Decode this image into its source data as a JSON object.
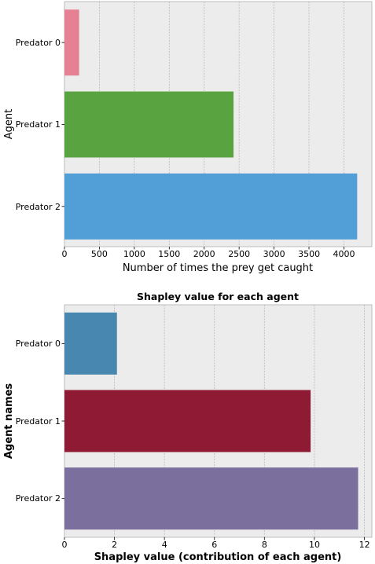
{
  "chart_data": [
    {
      "type": "bar",
      "orientation": "horizontal",
      "title": "",
      "xlabel": "Number of times the prey get caught",
      "ylabel": "Agent",
      "categories": [
        "Predator 0",
        "Predator 1",
        "Predator 2"
      ],
      "values": [
        210,
        2420,
        4190
      ],
      "colors": [
        "#e68093",
        "#59a440",
        "#529fd8"
      ],
      "xlim": [
        0,
        4400
      ],
      "xticks": [
        "0",
        "500",
        "1000",
        "1500",
        "2000",
        "2500",
        "3000",
        "3500",
        "4000"
      ],
      "grid": true
    },
    {
      "type": "bar",
      "orientation": "horizontal",
      "title": "Shapley value for each agent",
      "xlabel": "Shapley value (contribution of each agent)",
      "ylabel": "Agent names",
      "categories": [
        "Predator 0",
        "Predator 1",
        "Predator 2"
      ],
      "values": [
        2.1,
        9.85,
        11.75
      ],
      "colors": [
        "#4888b0",
        "#8e1a33",
        "#7b6f9e"
      ],
      "xlim": [
        0,
        12.3
      ],
      "xticks": [
        "0",
        "2",
        "4",
        "6",
        "8",
        "10",
        "12"
      ],
      "grid": true
    }
  ]
}
